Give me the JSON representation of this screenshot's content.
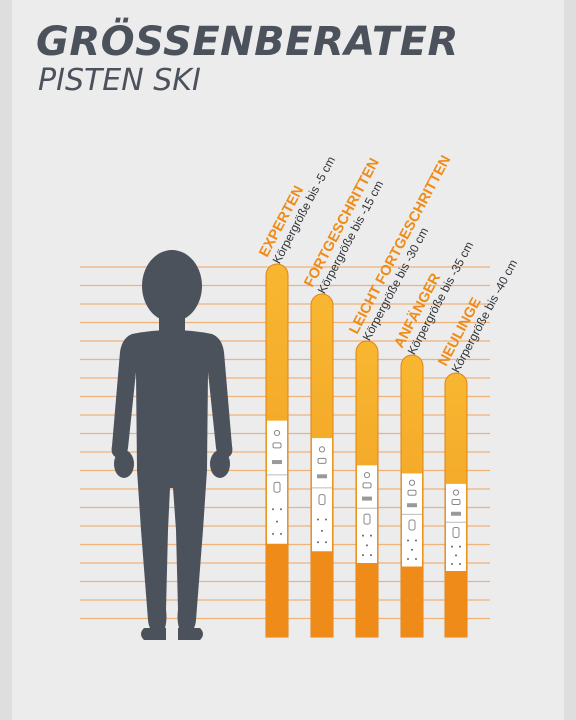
{
  "header": {
    "title": "GRÖSSENBERATER",
    "subtitle": "PISTEN SKI"
  },
  "colors": {
    "orange": "#ef8c19",
    "orange_light": "#f8b731",
    "slate": "#4b525c",
    "guide_line": "#f0a865"
  },
  "skis": [
    {
      "level": "EXPERTEN",
      "size_note": "Körpergröße bis -5 cm"
    },
    {
      "level": "FORTGESCHRITTEN",
      "size_note": "Körpergröße bis -15 cm"
    },
    {
      "level": "LEICHT FORTGESCHRITTEN",
      "size_note": "Körpergröße bis -30 cm"
    },
    {
      "level": "ANFÄNGER",
      "size_note": "Körpergröße bis -35 cm"
    },
    {
      "level": "NEULINGE",
      "size_note": "Körpergröße bis -40 cm"
    }
  ],
  "icons": {
    "person": "person-silhouette-icon",
    "ski": "ski-icon"
  }
}
